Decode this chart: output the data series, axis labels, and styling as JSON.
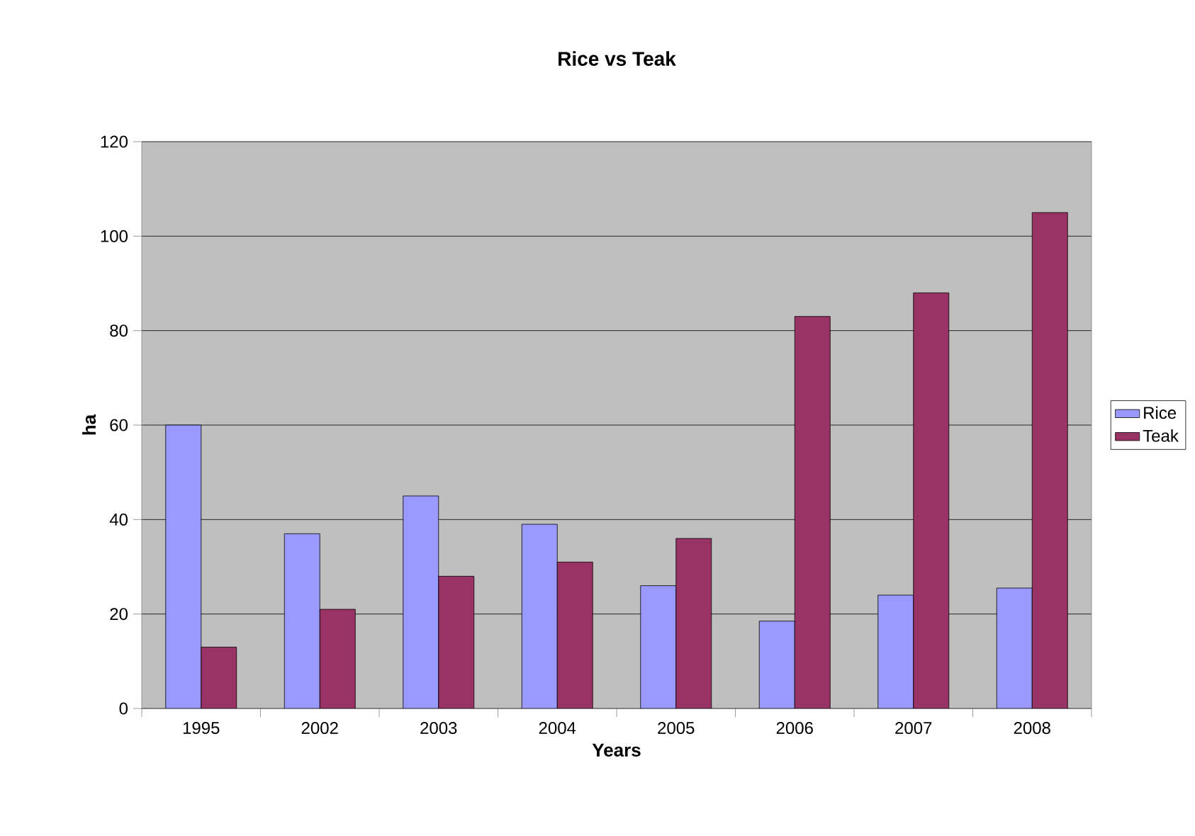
{
  "chart_data": {
    "type": "bar",
    "title": "Rice vs Teak",
    "xlabel": "Years",
    "ylabel": "ha",
    "categories": [
      "1995",
      "2002",
      "2003",
      "2004",
      "2005",
      "2006",
      "2007",
      "2008"
    ],
    "series": [
      {
        "name": "Rice",
        "color": "#9999ff",
        "values": [
          60,
          37,
          45,
          39,
          26,
          18.5,
          24,
          25.5
        ]
      },
      {
        "name": "Teak",
        "color": "#993366",
        "values": [
          13,
          21,
          28,
          31,
          36,
          83,
          88,
          105
        ]
      }
    ],
    "ylim": [
      0,
      120
    ],
    "yticks": [
      0,
      20,
      40,
      60,
      80,
      100,
      120
    ],
    "grid": "y",
    "legend": "right"
  }
}
